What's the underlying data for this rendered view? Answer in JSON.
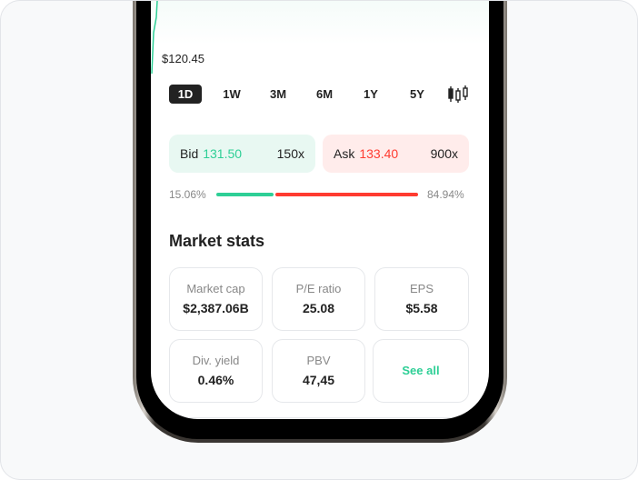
{
  "chart": {
    "price_label": "$120.45",
    "line_color": "#2ecf96"
  },
  "timeframes": {
    "items": [
      "1D",
      "1W",
      "3M",
      "6M",
      "1Y",
      "5Y"
    ],
    "selected": "1D",
    "candlestick_icon": "candlestick-icon"
  },
  "bid": {
    "label": "Bid",
    "price": "131.50",
    "size": "150x"
  },
  "ask": {
    "label": "Ask",
    "price": "133.40",
    "size": "900x"
  },
  "depth": {
    "bid_pct_label": "15.06%",
    "ask_pct_label": "84.94%",
    "bid_fraction": 0.1506,
    "bid_color": "#2ecf96",
    "ask_color": "#ff3b30"
  },
  "market_stats": {
    "title": "Market stats",
    "items": [
      {
        "label": "Market cap",
        "value": "$2,387.06B"
      },
      {
        "label": "P/E ratio",
        "value": "25.08"
      },
      {
        "label": "EPS",
        "value": "$5.58"
      },
      {
        "label": "Div. yield",
        "value": "0.46%"
      },
      {
        "label": "PBV",
        "value": "47,45"
      }
    ],
    "see_all": "See all"
  }
}
